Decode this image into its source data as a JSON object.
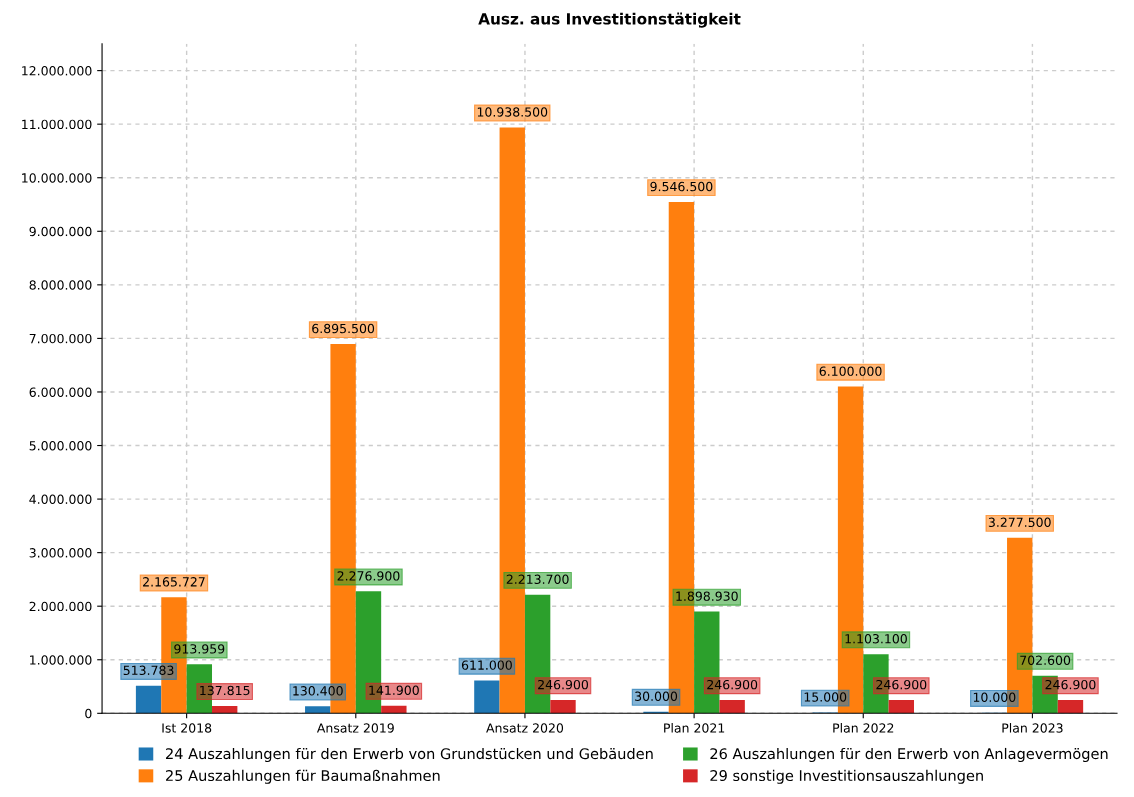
{
  "chart_data": {
    "type": "bar",
    "title": "Ausz. aus Investitionstätigkeit",
    "categories": [
      "Ist 2018",
      "Ansatz 2019",
      "Ansatz 2020",
      "Plan 2021",
      "Plan 2022",
      "Plan 2023"
    ],
    "series": [
      {
        "name": "24 Auszahlungen für den Erwerb von Grundstücken und Gebäuden",
        "color": "#1f77b4",
        "values": [
          513783,
          130400,
          611000,
          30000,
          15000,
          10000
        ],
        "value_labels": [
          "513.783",
          "130.400",
          "611.000",
          "30.000",
          "15.000",
          "10.000"
        ]
      },
      {
        "name": "25 Auszahlungen für Baumaßnahmen",
        "color": "#ff7f0e",
        "values": [
          2165727,
          6895500,
          10938500,
          9546500,
          6100000,
          3277500
        ],
        "value_labels": [
          "2.165.727",
          "6.895.500",
          "10.938.500",
          "9.546.500",
          "6.100.000",
          "3.277.500"
        ]
      },
      {
        "name": "26 Auszahlungen für den Erwerb von Anlagevermögen",
        "color": "#2ca02c",
        "values": [
          913959,
          2276900,
          2213700,
          1898930,
          1103100,
          702600
        ],
        "value_labels": [
          "913.959",
          "2.276.900",
          "2.213.700",
          "1.898.930",
          "1.103.100",
          "702.600"
        ]
      },
      {
        "name": "29 sonstige Investitionsauszahlungen",
        "color": "#d62728",
        "values": [
          137815,
          141900,
          246900,
          246900,
          246900,
          246900
        ],
        "value_labels": [
          "137.815",
          "141.900",
          "246.900",
          "246.900",
          "246.900",
          "246.900"
        ]
      }
    ],
    "ylim": [
      0,
      12500000
    ],
    "yticks": [
      0,
      {
        "value": 1000000,
        "label": "1.000.000"
      },
      {
        "value": 2000000,
        "label": "2.000.000"
      },
      {
        "value": 3000000,
        "label": "3.000.000"
      },
      {
        "value": 4000000,
        "label": "4.000.000"
      },
      {
        "value": 5000000,
        "label": "5.000.000"
      },
      {
        "value": 6000000,
        "label": "6.000.000"
      },
      {
        "value": 7000000,
        "label": "7.000.000"
      },
      {
        "value": 8000000,
        "label": "8.000.000"
      },
      {
        "value": 9000000,
        "label": "9.000.000"
      },
      {
        "value": 10000000,
        "label": "10.000.000"
      },
      {
        "value": 11000000,
        "label": "11.000.000"
      },
      {
        "value": 12000000,
        "label": "12.000.000"
      }
    ],
    "grid": true,
    "legend": "bottom"
  }
}
